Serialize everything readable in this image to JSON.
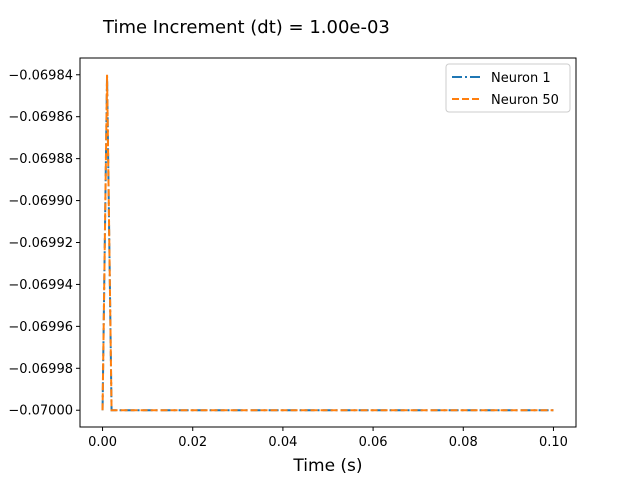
{
  "chart_data": {
    "type": "line",
    "title": "Time Increment (dt) = 1.00e-03",
    "xlabel": "Time (s)",
    "ylabel": "",
    "xlim": [
      -0.005,
      0.105
    ],
    "ylim": [
      -0.070008,
      -0.069832
    ],
    "xticks": [
      0.0,
      0.02,
      0.04,
      0.06,
      0.08,
      0.1
    ],
    "xtick_labels": [
      "0.00",
      "0.02",
      "0.04",
      "0.06",
      "0.08",
      "0.10"
    ],
    "yticks": [
      -0.06984,
      -0.06986,
      -0.06988,
      -0.0699,
      -0.06992,
      -0.06994,
      -0.06996,
      -0.06998,
      -0.07
    ],
    "ytick_labels": [
      "−0.06984",
      "−0.06986",
      "−0.06988",
      "−0.06990",
      "−0.06992",
      "−0.06994",
      "−0.06996",
      "−0.06998",
      "−0.07000"
    ],
    "grid": false,
    "legend_position": "top-right",
    "series": [
      {
        "name": "Neuron 1",
        "color": "#1f77b4",
        "style": "dash-dot",
        "x": [
          0.0,
          0.001,
          0.002,
          0.003,
          0.1
        ],
        "y": [
          -0.07,
          -0.06984,
          -0.07,
          -0.07,
          -0.07
        ]
      },
      {
        "name": "Neuron 50",
        "color": "#ff7f0e",
        "style": "dashed",
        "x": [
          0.0,
          0.001,
          0.002,
          0.003,
          0.1
        ],
        "y": [
          -0.07,
          -0.06984,
          -0.07,
          -0.07,
          -0.07
        ]
      }
    ]
  }
}
